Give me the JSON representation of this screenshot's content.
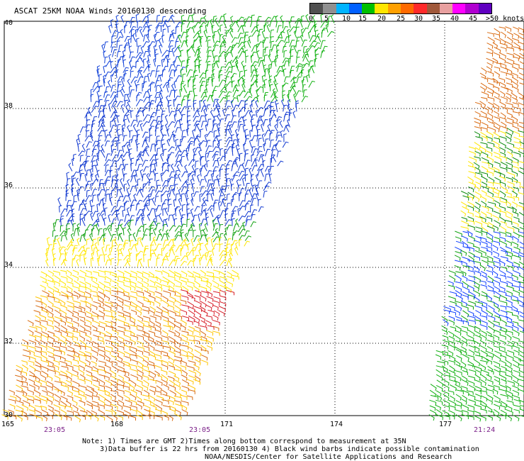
{
  "title": "ASCAT 25KM NOAA Winds 20160130 descending",
  "legend": {
    "labels": [
      "0",
      "5",
      "10",
      "15",
      "20",
      "25",
      "30",
      "35",
      "40",
      "45",
      ">50 knots"
    ],
    "colors": [
      "#505050",
      "#909090",
      "#00b4ff",
      "#0060ff",
      "#00c000",
      "#ffe600",
      "#ffa000",
      "#ff6a00",
      "#ff2a2a",
      "#a0583a",
      "#e8a0a0",
      "#ff00ff",
      "#b000d0",
      "#6000c0"
    ]
  },
  "axes": {
    "lat_labels": [
      "40",
      "38",
      "36",
      "34",
      "32",
      "30"
    ],
    "lon_labels": [
      "165",
      "168",
      "171",
      "174",
      "177"
    ]
  },
  "times": [
    "23:05",
    "23:05",
    "21:24"
  ],
  "notes": [
    "Note: 1) Times are GMT 2)Times along bottom correspond to measurement at 35N",
    "3)Data buffer is 22 hrs from 20160130 4) Black wind barbs indicate possible contamination",
    "NOAA/NESDIS/Center for Satellite Applications and Research"
  ]
}
